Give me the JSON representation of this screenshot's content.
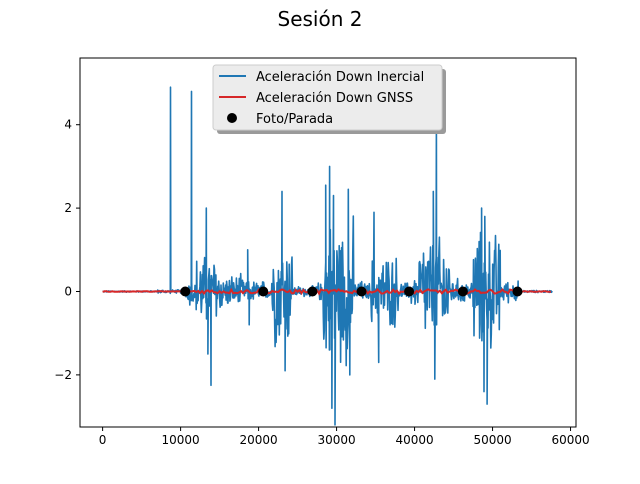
{
  "chart_data": {
    "type": "line",
    "title": "Sesión 2",
    "xlabel": "",
    "ylabel": "",
    "xlim": [
      -2900,
      60700
    ],
    "ylim": [
      -3.25,
      5.6
    ],
    "x_ticks": [
      0,
      10000,
      20000,
      30000,
      40000,
      50000,
      60000
    ],
    "y_ticks": [
      -2,
      0,
      2,
      4
    ],
    "grid": false,
    "legend_position": "top-center",
    "series": [
      {
        "name": "Aceleración Down Inercial",
        "kind": "line",
        "color": "#1f77b4",
        "segments": [
          {
            "x0": 0,
            "x1": 7000,
            "amp": 0.02
          },
          {
            "x0": 7000,
            "x1": 10700,
            "amp": 0.05
          },
          {
            "x0": 10700,
            "x1": 12000,
            "amp": 0.45
          },
          {
            "x0": 12000,
            "x1": 15300,
            "amp": 1.0
          },
          {
            "x0": 15300,
            "x1": 18000,
            "amp": 0.45
          },
          {
            "x0": 18000,
            "x1": 20700,
            "amp": 0.3
          },
          {
            "x0": 20700,
            "x1": 21700,
            "amp": 0.2
          },
          {
            "x0": 21700,
            "x1": 24400,
            "amp": 1.5
          },
          {
            "x0": 24400,
            "x1": 27000,
            "amp": 0.15
          },
          {
            "x0": 27000,
            "x1": 28300,
            "amp": 0.25
          },
          {
            "x0": 28300,
            "x1": 32200,
            "amp": 2.0
          },
          {
            "x0": 32200,
            "x1": 33300,
            "amp": 0.3
          },
          {
            "x0": 33300,
            "x1": 34400,
            "amp": 0.25
          },
          {
            "x0": 34400,
            "x1": 38000,
            "amp": 1.0
          },
          {
            "x0": 38000,
            "x1": 39400,
            "amp": 0.25
          },
          {
            "x0": 39400,
            "x1": 40600,
            "amp": 0.45
          },
          {
            "x0": 40600,
            "x1": 44500,
            "amp": 1.5
          },
          {
            "x0": 44500,
            "x1": 46100,
            "amp": 0.35
          },
          {
            "x0": 46100,
            "x1": 47500,
            "amp": 0.3
          },
          {
            "x0": 47500,
            "x1": 51000,
            "amp": 1.6
          },
          {
            "x0": 51000,
            "x1": 53300,
            "amp": 0.3
          },
          {
            "x0": 53300,
            "x1": 57700,
            "amp": 0.03
          }
        ],
        "spikes": [
          {
            "x": 8700,
            "y": 4.9
          },
          {
            "x": 11400,
            "y": 4.8
          },
          {
            "x": 13300,
            "y": 2.0
          },
          {
            "x": 13500,
            "y": -1.5
          },
          {
            "x": 13900,
            "y": -2.25
          },
          {
            "x": 18600,
            "y": 1.0
          },
          {
            "x": 18800,
            "y": -0.8
          },
          {
            "x": 23000,
            "y": 2.4
          },
          {
            "x": 23400,
            "y": -1.9
          },
          {
            "x": 28600,
            "y": 2.55
          },
          {
            "x": 29100,
            "y": 3.0
          },
          {
            "x": 29600,
            "y": 2.3
          },
          {
            "x": 29800,
            "y": -3.2
          },
          {
            "x": 29400,
            "y": -2.8
          },
          {
            "x": 31500,
            "y": 2.45
          },
          {
            "x": 31700,
            "y": -2.0
          },
          {
            "x": 34800,
            "y": 1.9
          },
          {
            "x": 35400,
            "y": -1.7
          },
          {
            "x": 42800,
            "y": 4.1
          },
          {
            "x": 42400,
            "y": 2.4
          },
          {
            "x": 42600,
            "y": -2.1
          },
          {
            "x": 48600,
            "y": 2.0
          },
          {
            "x": 48900,
            "y": -2.4
          },
          {
            "x": 49300,
            "y": -2.7
          },
          {
            "x": 49000,
            "y": 1.8
          }
        ]
      },
      {
        "name": "Aceleración Down GNSS",
        "kind": "line",
        "color": "#d62728",
        "x_range": [
          0,
          57700
        ],
        "amp": 0.05
      },
      {
        "name": "Foto/Parada",
        "kind": "scatter",
        "color": "#000000",
        "x": [
          10600,
          20600,
          26900,
          33200,
          39300,
          46200,
          53200
        ],
        "y": [
          0,
          0,
          0,
          0,
          0,
          0,
          0
        ]
      }
    ]
  }
}
